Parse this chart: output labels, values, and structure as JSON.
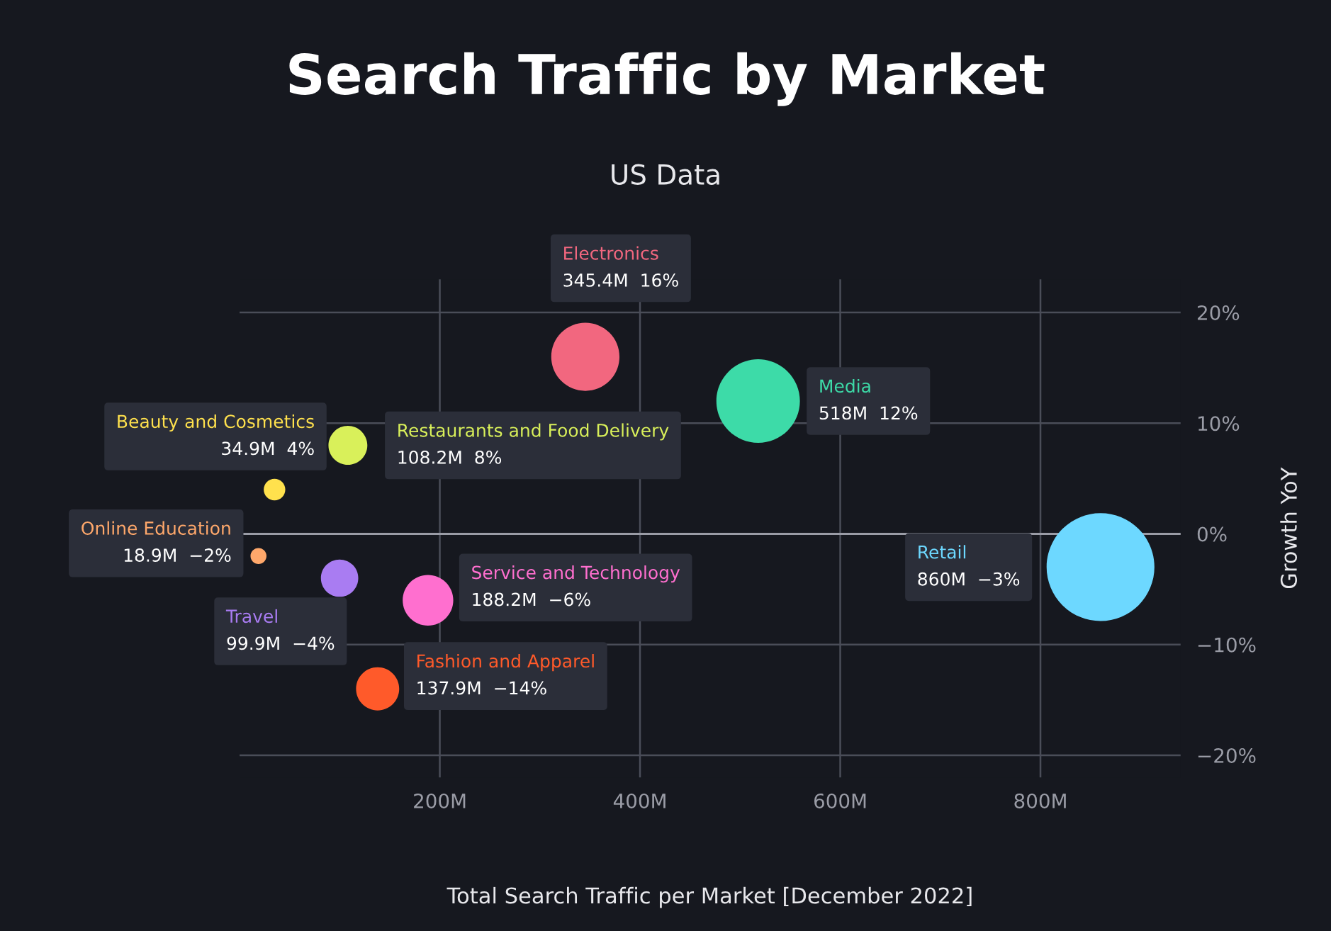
{
  "chart_data": {
    "type": "bubble",
    "title": "Search Traffic by Market",
    "subtitle": "US Data",
    "xlabel": "Total Search Traffic per Market [December 2022]",
    "ylabel": "Growth YoY",
    "xlim": [
      0,
      940
    ],
    "xticks": [
      {
        "value": 200,
        "label": "200M"
      },
      {
        "value": 400,
        "label": "400M"
      },
      {
        "value": 600,
        "label": "600M"
      },
      {
        "value": 800,
        "label": "800M"
      }
    ],
    "ylim": [
      -22,
      23
    ],
    "yticks": [
      {
        "value": 20,
        "label": "20%"
      },
      {
        "value": 10,
        "label": "10%"
      },
      {
        "value": 0,
        "label": "0%"
      },
      {
        "value": -10,
        "label": "−10%"
      },
      {
        "value": -20,
        "label": "−20%"
      }
    ],
    "grid": true,
    "marker": "circle",
    "ref_lines": [
      {
        "axis": "y",
        "value": 0,
        "color": "#9a9ca6"
      }
    ],
    "series": [
      {
        "name": "Electronics",
        "color": "#f2677f",
        "x": [
          345.4
        ],
        "values": [
          16
        ],
        "sizes": [
          0.4
        ],
        "value_labels": [
          "345.4M  16%"
        ]
      },
      {
        "name": "Media",
        "color": "#3ddba8",
        "x": [
          518
        ],
        "values": [
          12
        ],
        "sizes": [
          0.6
        ],
        "value_labels": [
          "518M  12%"
        ]
      },
      {
        "name": "Beauty and Cosmetics",
        "color": "#ffe14d",
        "x": [
          34.9
        ],
        "values": [
          4
        ],
        "sizes": [
          0.04
        ],
        "value_labels": [
          "34.9M  4%"
        ]
      },
      {
        "name": "Restaurants and Food Delivery",
        "color": "#d9f05a",
        "x": [
          108.2
        ],
        "values": [
          8
        ],
        "sizes": [
          0.13
        ],
        "value_labels": [
          "108.2M  8%"
        ]
      },
      {
        "name": "Online Education",
        "color": "#ffa86b",
        "x": [
          18.9
        ],
        "values": [
          -2
        ],
        "sizes": [
          0.022
        ],
        "value_labels": [
          "18.9M  −2%"
        ]
      },
      {
        "name": "Travel",
        "color": "#a97cf2",
        "x": [
          99.9
        ],
        "values": [
          -4
        ],
        "sizes": [
          0.12
        ],
        "value_labels": [
          "99.9M  −4%"
        ]
      },
      {
        "name": "Service and Technology",
        "color": "#ff6fcf",
        "x": [
          188.2
        ],
        "values": [
          -6
        ],
        "sizes": [
          0.22
        ],
        "value_labels": [
          "188.2M  −6%"
        ]
      },
      {
        "name": "Fashion and Apparel",
        "color": "#ff5a2a",
        "x": [
          137.9
        ],
        "values": [
          -14
        ],
        "sizes": [
          0.16
        ],
        "value_labels": [
          "137.9M  −14%"
        ]
      },
      {
        "name": "Retail",
        "color": "#6dd8ff",
        "x": [
          860
        ],
        "values": [
          -3
        ],
        "sizes": [
          1
        ],
        "value_labels": [
          "860M  −3%"
        ]
      }
    ]
  }
}
